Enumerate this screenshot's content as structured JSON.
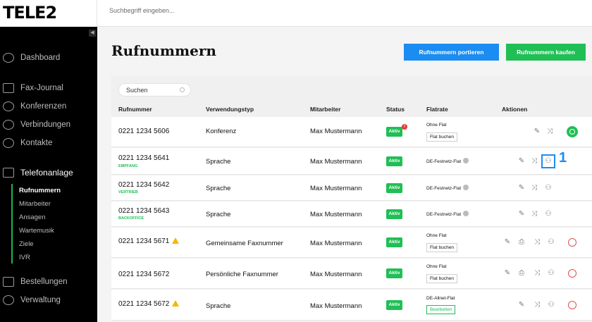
{
  "brand": {
    "logo": "TELE2"
  },
  "search": {
    "placeholder": "Suchbegriff eingeben..."
  },
  "sidebar": {
    "items": [
      {
        "label": "Dashboard",
        "icon": "dashboard-icon"
      },
      {
        "label": "Fax-Journal",
        "icon": "fax-icon"
      },
      {
        "label": "Konferenzen",
        "icon": "conference-icon"
      },
      {
        "label": "Verbindungen",
        "icon": "phone-icon"
      },
      {
        "label": "Kontakte",
        "icon": "contacts-icon"
      },
      {
        "label": "Telefonanlage",
        "icon": "phone-system-icon"
      },
      {
        "label": "Bestellungen",
        "icon": "cart-icon"
      },
      {
        "label": "Verwaltung",
        "icon": "admin-icon"
      }
    ],
    "subitems": [
      "Rufnummern",
      "Mitarbeiter",
      "Ansagen",
      "Wartemusik",
      "Ziele",
      "IVR"
    ]
  },
  "page": {
    "title": "Rufnummern",
    "port_button": "Rufnummern portieren",
    "buy_button": "Rufnummern kaufen"
  },
  "table": {
    "search_placeholder": "Suchen",
    "headers": [
      "Rufnummer",
      "Verwendungstyp",
      "Mitarbeiter",
      "Status",
      "Flatrate",
      "Aktionen"
    ],
    "rows": [
      {
        "number": "0221 1234 5606",
        "tag": "",
        "type": "Konferenz",
        "employee": "Max Mustermann",
        "status": "Aktiv",
        "flat": "Ohne Flat",
        "flat_button": "Flat buchen"
      },
      {
        "number": "0221 1234 5641",
        "tag": "EMPFANG",
        "type": "Sprache",
        "employee": "Max Mustermann",
        "status": "Aktiv",
        "flat": "DE-Festnetz-Flat",
        "flat_button": ""
      },
      {
        "number": "0221 1234 5642",
        "tag": "VERTRIEB",
        "type": "Sprache",
        "employee": "Max Mustermann",
        "status": "Aktiv",
        "flat": "DE-Festnetz-Flat",
        "flat_button": ""
      },
      {
        "number": "0221 1234 5643",
        "tag": "BACKOFFICE",
        "type": "Sprache",
        "employee": "Max Mustermann",
        "status": "Aktiv",
        "flat": "DE-Festnetz-Flat",
        "flat_button": ""
      },
      {
        "number": "0221 1234 5671",
        "tag": "",
        "type": "Gemeinsame Faxnummer",
        "employee": "Max Mustermann",
        "status": "Aktiv",
        "flat": "Ohne Flat",
        "flat_button": "Flat buchen"
      },
      {
        "number": "0221 1234 5672",
        "tag": "",
        "type": "Persönliche Faxnummer",
        "employee": "Max Mustermann",
        "status": "Aktiv",
        "flat": "Ohne Flat",
        "flat_button": "Flat buchen"
      },
      {
        "number": "0221 1234 5672",
        "tag": "",
        "type": "Sprache",
        "employee": "Max Mustermann",
        "status": "Aktiv",
        "flat": "DE-Allnet-Flat",
        "flat_button": "Bearbeiten"
      }
    ],
    "callout": "1"
  },
  "colors": {
    "accent_green": "#1fbf55",
    "accent_blue": "#1b8cf1",
    "alert_red": "#e53b3b",
    "warning": "#f5b800"
  }
}
